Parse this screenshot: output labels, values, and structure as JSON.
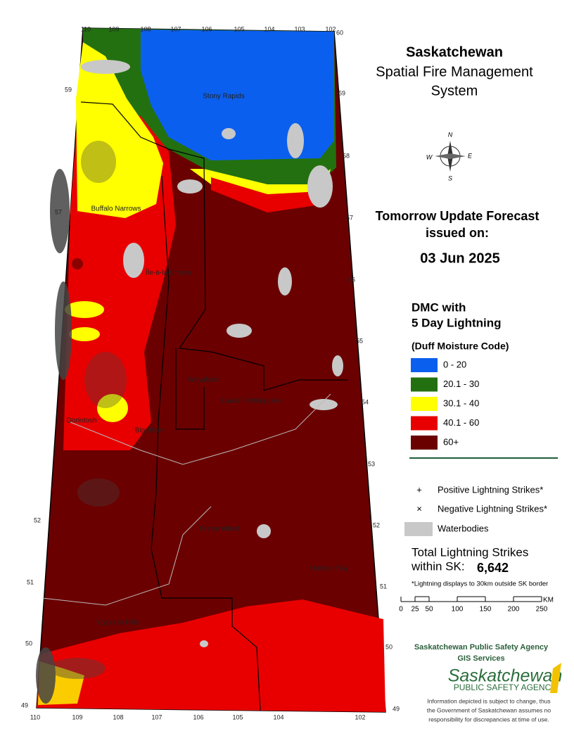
{
  "header": {
    "title": "Saskatchewan",
    "subtitle": [
      "Spatial Fire Management",
      "System"
    ]
  },
  "forecast": {
    "heading": [
      "Tomorrow Update Forecast",
      "issued on:"
    ],
    "date": "03 Jun 2025"
  },
  "legend": {
    "title": [
      "DMC with",
      "5 Day Lightning"
    ],
    "subtitle": "(Duff Moisture Code)",
    "classes": [
      {
        "label": "0 - 20",
        "color": "#0b5fef"
      },
      {
        "label": "20.1 - 30",
        "color": "#237010"
      },
      {
        "label": "30.1 - 40",
        "color": "#ffff00"
      },
      {
        "label": "40.1 - 60",
        "color": "#e80000"
      },
      {
        "label": "60+",
        "color": "#6b0000"
      }
    ],
    "symbols": [
      {
        "marker": "+",
        "label": "Positive Lightning Strikes*"
      },
      {
        "marker": "×",
        "label": "Negative Lightning Strikes*"
      },
      {
        "label": "Waterbodies",
        "color": "#c8c8c8"
      }
    ]
  },
  "total": {
    "label": [
      "Total Lightning Strikes",
      "within SK:"
    ],
    "value": "6,642",
    "note": "*Lightning displays to 30km outside SK border"
  },
  "scale": {
    "ticks": [
      "0",
      "25",
      "50",
      "100",
      "150",
      "200",
      "250"
    ],
    "unit": "KM"
  },
  "agency": {
    "name": "Saskatchewan Public Safety Agency",
    "unit": "GIS  Services",
    "logo": [
      "Saskatchewan",
      "PUBLIC SAFETY AGENCY"
    ],
    "disclaimer": [
      "Information depicted is subject to change, thus",
      "the Government of Saskatchewan assumes no",
      "responsibility for discrepancies at time of use."
    ]
  },
  "map": {
    "compass": [
      "N",
      "E",
      "S",
      "W"
    ],
    "places": [
      "Stony Rapids",
      "Buffalo Narrows",
      "Île-à-la-Crosse",
      "Weyakwin",
      "Lower Fishing Lake",
      "Dorintosh",
      "Big River",
      "Prince Albert",
      "Hudson Bay",
      "Cypress Hills"
    ],
    "longitudes_top": [
      "110",
      "109",
      "108",
      "107",
      "106",
      "105",
      "104",
      "103",
      "102"
    ],
    "longitudes_bottom": [
      "110",
      "109",
      "108",
      "107",
      "106",
      "105",
      "104",
      "102"
    ],
    "latitudes_right": [
      "60",
      "59",
      "58",
      "57",
      "56",
      "55",
      "54",
      "53",
      "52",
      "51",
      "50",
      "49"
    ],
    "latitudes_left": [
      "59",
      "57",
      "52",
      "51",
      "50",
      "49"
    ]
  }
}
